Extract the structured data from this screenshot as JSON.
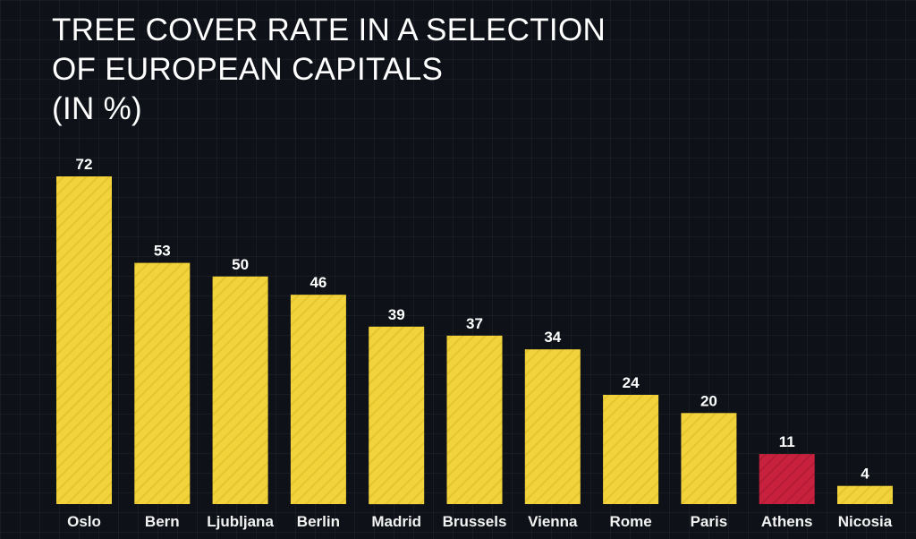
{
  "colors": {
    "background": "#0e1218",
    "default_bar": "#f2d33b",
    "highlight_bar": "#c8213e",
    "text": "#ffffff"
  },
  "chart_data": {
    "type": "bar",
    "title_lines": [
      "TREE COVER RATE IN A SELECTION",
      "OF EUROPEAN CAPITALS",
      "(IN %)"
    ],
    "xlabel": "",
    "ylabel": "",
    "categories": [
      "Oslo",
      "Bern",
      "Ljubljana",
      "Berlin",
      "Madrid",
      "Brussels",
      "Vienna",
      "Rome",
      "Paris",
      "Athens",
      "Nicosia"
    ],
    "values": [
      72,
      53,
      50,
      46,
      39,
      37,
      34,
      24,
      20,
      11,
      4
    ],
    "highlighted_category": "Athens",
    "data_labels": true,
    "grid": false,
    "legend": "none"
  }
}
